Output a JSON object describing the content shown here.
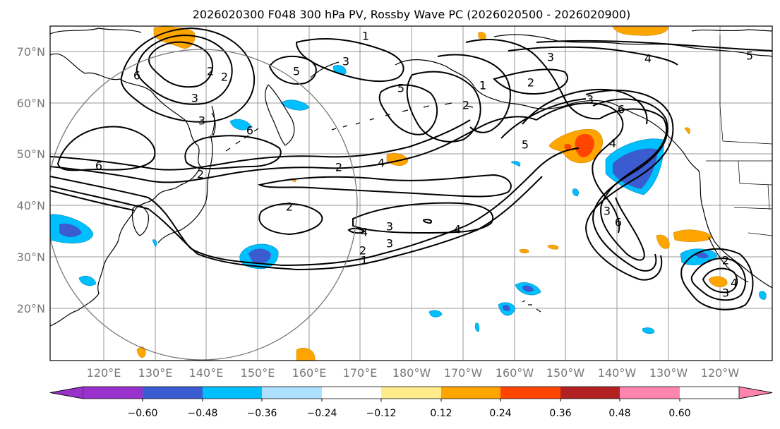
{
  "map": {
    "title": "2026020300 F048 300 hPa PV, Rossby Wave PC (2026020500 - 2026020900)",
    "lat_labels": [
      "70°N",
      "60°N",
      "50°N",
      "40°N",
      "30°N",
      "20°N"
    ],
    "lon_labels": [
      "120°E",
      "130°E",
      "140°E",
      "150°E",
      "160°E",
      "170°E",
      "180°W",
      "170°W",
      "160°W",
      "150°W",
      "140°W",
      "130°W",
      "120°W"
    ],
    "contour_labels": [
      "1",
      "2",
      "3",
      "4",
      "5",
      "6",
      "2",
      "3",
      "5",
      "6",
      "2",
      "3",
      "4",
      "6",
      "2",
      "2",
      "1",
      "2",
      "3",
      "4",
      "4",
      "1",
      "2",
      "3",
      "4",
      "5",
      "6",
      "2",
      "3",
      "3",
      "6",
      "2",
      "3",
      "3",
      "4",
      "5"
    ]
  },
  "colorbar": {
    "tick_labels": [
      "−0.60",
      "−0.48",
      "−0.36",
      "−0.24",
      "−0.12",
      "0.12",
      "0.24",
      "0.36",
      "0.48",
      "0.60"
    ],
    "colors": [
      "#9932CC",
      "#00008B",
      "#3B5BD0",
      "#00BFFF",
      "#ADDFFF",
      "#FFFFFF",
      "#FFEB8A",
      "#FFA500",
      "#FF4500",
      "#B22222",
      "#FF85B0"
    ]
  }
}
